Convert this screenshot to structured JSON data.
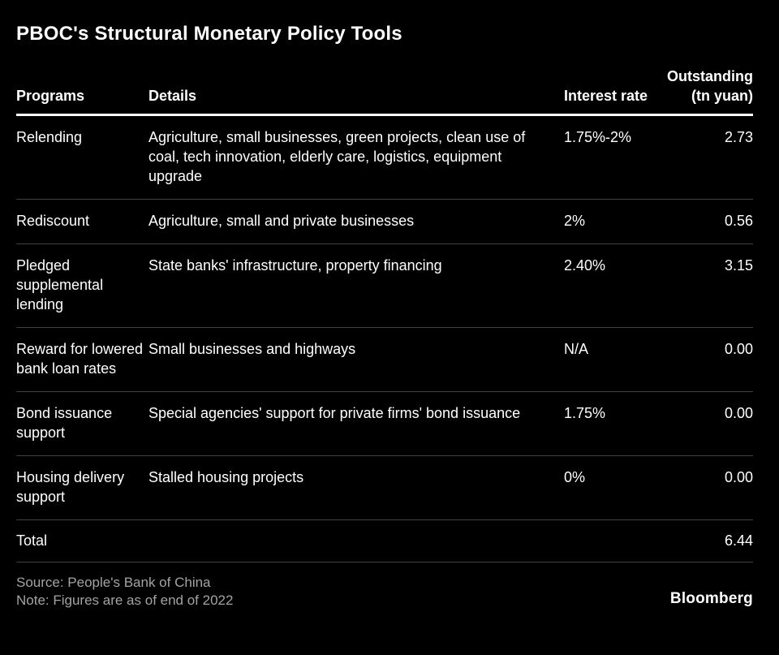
{
  "title": "PBOC's Structural Monetary Policy Tools",
  "table": {
    "headers": {
      "programs": "Programs",
      "details": "Details",
      "rate": "Interest rate",
      "outstanding": "Outstanding (tn yuan)"
    },
    "rows": [
      {
        "program": "Relending",
        "details": "Agriculture, small businesses, green projects, clean use of coal, tech innovation, elderly care, logistics, equipment upgrade",
        "rate": "1.75%-2%",
        "outstanding": "2.73"
      },
      {
        "program": "Rediscount",
        "details": "Agriculture, small and private businesses",
        "rate": "2%",
        "outstanding": "0.56"
      },
      {
        "program": "Pledged supplemental lending",
        "details": "State banks' infrastructure, property financing",
        "rate": "2.40%",
        "outstanding": "3.15"
      },
      {
        "program": "Reward for lowered bank loan rates",
        "details": "Small businesses and highways",
        "rate": "N/A",
        "outstanding": "0.00"
      },
      {
        "program": "Bond issuance support",
        "details": "Special agencies' support for private firms' bond issuance",
        "rate": "1.75%",
        "outstanding": "0.00"
      },
      {
        "program": "Housing delivery support",
        "details": "Stalled housing projects",
        "rate": "0%",
        "outstanding": "0.00"
      }
    ],
    "total": {
      "label": "Total",
      "value": "6.44"
    }
  },
  "footer": {
    "source": "Source: People's Bank of China",
    "note": "Note: Figures are as of end of 2022",
    "brand": "Bloomberg"
  },
  "colors": {
    "background": "#000000",
    "text": "#ffffff",
    "muted_text": "#a3a3a3",
    "row_divider": "#3f3f3f",
    "header_rule": "#ffffff"
  },
  "chart_data": {
    "type": "table",
    "title": "PBOC's Structural Monetary Policy Tools",
    "columns": [
      "Programs",
      "Details",
      "Interest rate",
      "Outstanding (tn yuan)"
    ],
    "rows": [
      [
        "Relending",
        "Agriculture, small businesses, green projects, clean use of coal, tech innovation, elderly care, logistics, equipment upgrade",
        "1.75%-2%",
        2.73
      ],
      [
        "Rediscount",
        "Agriculture, small and private businesses",
        "2%",
        0.56
      ],
      [
        "Pledged supplemental lending",
        "State banks' infrastructure, property financing",
        "2.40%",
        3.15
      ],
      [
        "Reward for lowered bank loan rates",
        "Small businesses and highways",
        "N/A",
        0.0
      ],
      [
        "Bond issuance support",
        "Special agencies' support for private firms' bond issuance",
        "1.75%",
        0.0
      ],
      [
        "Housing delivery support",
        "Stalled housing projects",
        "0%",
        0.0
      ]
    ],
    "total_row": [
      "Total",
      "",
      "",
      6.44
    ],
    "source": "People's Bank of China",
    "note": "Figures are as of end of 2022"
  }
}
